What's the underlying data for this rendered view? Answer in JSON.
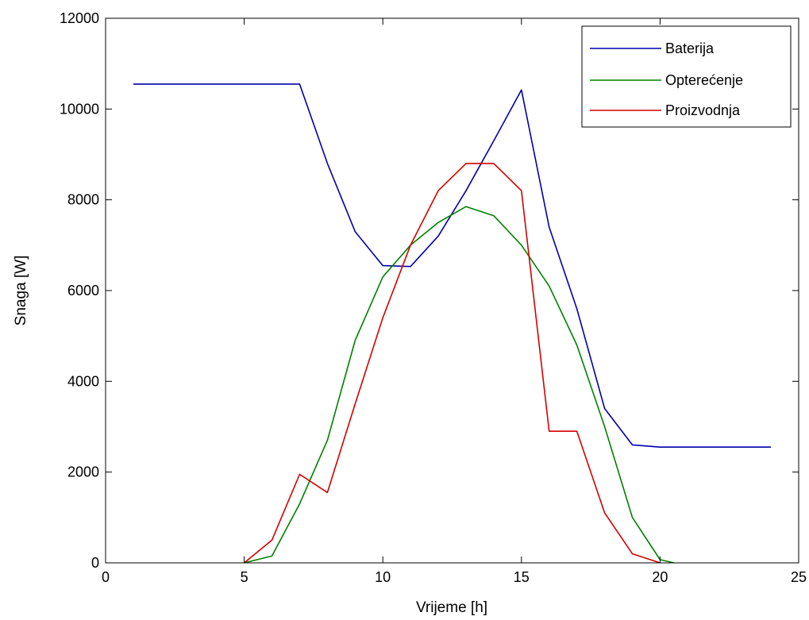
{
  "chart_data": {
    "type": "line",
    "title": "",
    "xlabel": "Vrijeme [h]",
    "ylabel": "Snaga [W]",
    "xlim": [
      0,
      25
    ],
    "ylim": [
      0,
      12000
    ],
    "xticks": [
      "0",
      "5",
      "10",
      "15",
      "20",
      "25"
    ],
    "yticks": [
      "0",
      "2000",
      "4000",
      "6000",
      "8000",
      "10000",
      "12000"
    ],
    "grid": false,
    "legend_position": "top-right",
    "series": [
      {
        "name": "Baterija",
        "color": "#0000aa",
        "points": [
          [
            1,
            10550
          ],
          [
            2,
            10550
          ],
          [
            3,
            10550
          ],
          [
            4,
            10550
          ],
          [
            5,
            10550
          ],
          [
            6,
            10550
          ],
          [
            7,
            10550
          ],
          [
            8,
            8800
          ],
          [
            9,
            7300
          ],
          [
            10,
            6550
          ],
          [
            11,
            6530
          ],
          [
            12,
            7200
          ],
          [
            13,
            8200
          ],
          [
            14,
            9300
          ],
          [
            15,
            10420
          ],
          [
            16,
            7400
          ],
          [
            17,
            5600
          ],
          [
            18,
            3400
          ],
          [
            19,
            2600
          ],
          [
            20,
            2550
          ],
          [
            21,
            2550
          ],
          [
            22,
            2550
          ],
          [
            23,
            2550
          ],
          [
            24,
            2550
          ]
        ]
      },
      {
        "name": "Opterećenje",
        "color": "#008000",
        "points": [
          [
            5,
            0
          ],
          [
            6,
            150
          ],
          [
            7,
            1300
          ],
          [
            8,
            2700
          ],
          [
            9,
            4900
          ],
          [
            10,
            6300
          ],
          [
            11,
            7000
          ],
          [
            12,
            7500
          ],
          [
            13,
            7850
          ],
          [
            14,
            7650
          ],
          [
            15,
            7000
          ],
          [
            16,
            6100
          ],
          [
            17,
            4800
          ],
          [
            18,
            3000
          ],
          [
            19,
            1000
          ],
          [
            20,
            70
          ],
          [
            20.5,
            0
          ]
        ]
      },
      {
        "name": "Proizvodnja",
        "color": "#d40000",
        "points": [
          [
            5,
            0
          ],
          [
            6,
            500
          ],
          [
            7,
            1950
          ],
          [
            8,
            1550
          ],
          [
            9,
            3500
          ],
          [
            10,
            5400
          ],
          [
            11,
            7000
          ],
          [
            12,
            8200
          ],
          [
            13,
            8800
          ],
          [
            14,
            8800
          ],
          [
            15,
            8200
          ],
          [
            16,
            2900
          ],
          [
            17,
            2900
          ],
          [
            18,
            1100
          ],
          [
            19,
            200
          ],
          [
            20,
            0
          ]
        ]
      }
    ]
  }
}
